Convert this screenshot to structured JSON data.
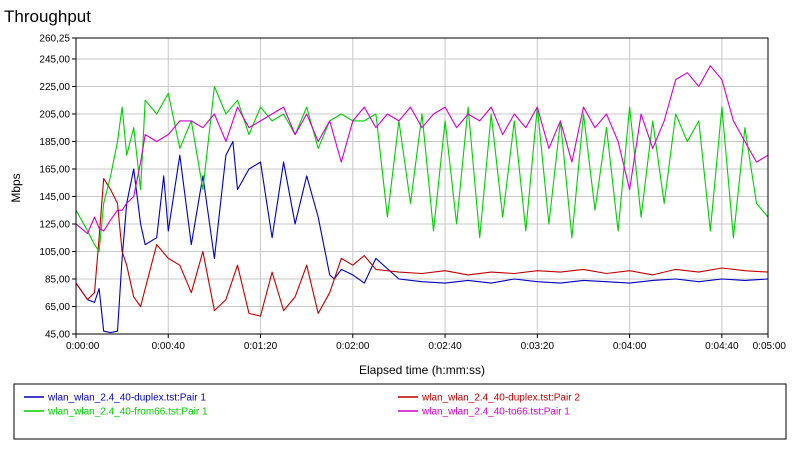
{
  "chart_data": {
    "type": "line",
    "title": "Throughput",
    "xlabel": "Elapsed time (h:mm:ss)",
    "ylabel": "Mbps",
    "xlim": [
      0,
      300
    ],
    "ylim": [
      45,
      260.25
    ],
    "y_ticks": [
      "45,00",
      "65,00",
      "85,00",
      "105,00",
      "125,00",
      "145,00",
      "165,00",
      "185,00",
      "205,00",
      "225,00",
      "245,00",
      "260,25"
    ],
    "y_tick_values": [
      45,
      65,
      85,
      105,
      125,
      145,
      165,
      185,
      205,
      225,
      245,
      260.25
    ],
    "x_ticks": [
      "0:00:00",
      "0:00:40",
      "0:01:20",
      "0:02:00",
      "0:02:40",
      "0:03:20",
      "0:04:00",
      "0:04:40",
      "0:05:00"
    ],
    "x_tick_values": [
      0,
      40,
      80,
      120,
      160,
      200,
      240,
      280,
      300
    ],
    "grid": true,
    "legend_position": "bottom",
    "series": [
      {
        "name": "wlan_wlan_2.4_40-duplex.tst:Pair 1",
        "color": "#0000c0",
        "x": [
          0,
          5,
          8,
          10,
          12,
          15,
          18,
          20,
          22,
          25,
          28,
          30,
          35,
          38,
          40,
          45,
          50,
          55,
          60,
          65,
          68,
          70,
          75,
          80,
          85,
          90,
          95,
          100,
          105,
          110,
          112,
          115,
          120,
          125,
          130,
          140,
          150,
          160,
          170,
          180,
          190,
          200,
          210,
          220,
          230,
          240,
          250,
          260,
          270,
          280,
          290,
          300
        ],
        "values": [
          82,
          70,
          68,
          78,
          47,
          46,
          47,
          100,
          140,
          165,
          125,
          110,
          115,
          160,
          120,
          175,
          110,
          160,
          100,
          175,
          185,
          150,
          165,
          170,
          115,
          170,
          125,
          160,
          130,
          88,
          85,
          92,
          88,
          82,
          100,
          85,
          83,
          82,
          84,
          82,
          85,
          83,
          82,
          84,
          83,
          82,
          84,
          85,
          83,
          85,
          84,
          85
        ]
      },
      {
        "name": "wlan_wlan_2.4_40-duplex.tst:Pair 2",
        "color": "#c00000",
        "x": [
          0,
          5,
          8,
          10,
          12,
          15,
          18,
          20,
          22,
          25,
          28,
          30,
          35,
          40,
          45,
          50,
          55,
          60,
          65,
          70,
          75,
          80,
          85,
          90,
          95,
          100,
          105,
          110,
          115,
          120,
          125,
          130,
          140,
          150,
          160,
          170,
          180,
          190,
          200,
          210,
          220,
          230,
          240,
          250,
          260,
          270,
          280,
          290,
          300
        ],
        "values": [
          82,
          70,
          75,
          115,
          158,
          150,
          140,
          105,
          95,
          72,
          65,
          78,
          110,
          100,
          95,
          75,
          105,
          62,
          70,
          95,
          60,
          58,
          90,
          62,
          72,
          95,
          60,
          75,
          100,
          95,
          102,
          92,
          90,
          89,
          91,
          88,
          90,
          89,
          91,
          90,
          92,
          89,
          91,
          88,
          92,
          90,
          93,
          91,
          90
        ]
      },
      {
        "name": "wlan_wlan_2.4_40-from66.tst:Pair 1",
        "color": "#00d000",
        "x": [
          0,
          5,
          8,
          10,
          12,
          15,
          18,
          20,
          22,
          25,
          28,
          30,
          35,
          40,
          45,
          50,
          55,
          60,
          65,
          70,
          75,
          80,
          85,
          90,
          95,
          100,
          105,
          110,
          115,
          120,
          125,
          130,
          135,
          140,
          145,
          150,
          155,
          160,
          165,
          170,
          175,
          180,
          185,
          190,
          195,
          200,
          205,
          210,
          215,
          220,
          225,
          230,
          235,
          240,
          245,
          250,
          255,
          260,
          265,
          270,
          275,
          280,
          285,
          290,
          295,
          300
        ],
        "values": [
          135,
          120,
          110,
          105,
          140,
          160,
          185,
          210,
          175,
          195,
          150,
          215,
          205,
          220,
          180,
          200,
          150,
          225,
          205,
          215,
          190,
          210,
          200,
          205,
          190,
          210,
          180,
          200,
          205,
          200,
          200,
          205,
          130,
          200,
          140,
          205,
          120,
          200,
          125,
          210,
          115,
          205,
          130,
          200,
          120,
          210,
          125,
          200,
          115,
          205,
          135,
          195,
          120,
          210,
          130,
          200,
          140,
          205,
          185,
          200,
          120,
          210,
          115,
          195,
          140,
          130
        ]
      },
      {
        "name": "wlan_wlan_2.4_40-to66.tst:Pair 1",
        "color": "#d000d0",
        "x": [
          0,
          5,
          8,
          10,
          12,
          15,
          18,
          20,
          22,
          25,
          28,
          30,
          35,
          40,
          45,
          50,
          55,
          60,
          65,
          70,
          75,
          80,
          85,
          90,
          95,
          100,
          105,
          110,
          115,
          120,
          125,
          130,
          135,
          140,
          145,
          150,
          155,
          160,
          165,
          170,
          175,
          180,
          185,
          190,
          195,
          200,
          205,
          210,
          215,
          220,
          225,
          230,
          235,
          240,
          245,
          250,
          255,
          260,
          265,
          270,
          275,
          280,
          285,
          290,
          295,
          300
        ],
        "values": [
          125,
          118,
          130,
          122,
          120,
          128,
          135,
          135,
          140,
          145,
          170,
          190,
          185,
          190,
          200,
          200,
          195,
          205,
          185,
          210,
          195,
          200,
          205,
          210,
          190,
          205,
          185,
          200,
          170,
          200,
          210,
          195,
          205,
          200,
          210,
          195,
          205,
          210,
          195,
          205,
          200,
          210,
          190,
          205,
          195,
          210,
          180,
          200,
          170,
          210,
          195,
          205,
          185,
          150,
          205,
          180,
          200,
          230,
          235,
          225,
          240,
          230,
          200,
          185,
          170,
          175
        ]
      }
    ]
  }
}
